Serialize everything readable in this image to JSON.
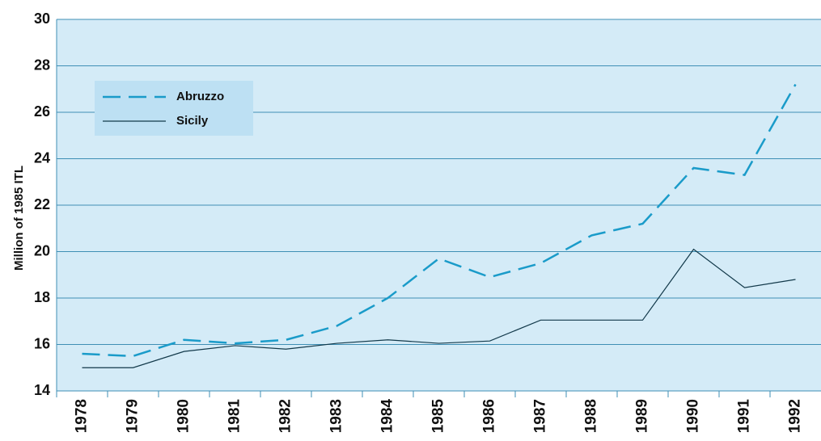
{
  "chart_data": {
    "type": "line",
    "y_label": "Million of 1985 ITL",
    "categories": [
      "1978",
      "1979",
      "1980",
      "1981",
      "1982",
      "1983",
      "1984",
      "1985",
      "1986",
      "1987",
      "1988",
      "1989",
      "1990",
      "1991",
      "1992"
    ],
    "series": [
      {
        "name": "Abruzzo",
        "color": "#1a9bc9",
        "dashed": true,
        "values": [
          15.6,
          15.5,
          16.2,
          16.05,
          16.2,
          16.8,
          18.0,
          19.7,
          18.9,
          19.5,
          20.7,
          21.2,
          23.6,
          23.3,
          27.2
        ]
      },
      {
        "name": "Sicily",
        "color": "#12394a",
        "dashed": false,
        "values": [
          15.0,
          15.0,
          15.7,
          15.95,
          15.8,
          16.05,
          16.2,
          16.05,
          16.15,
          17.05,
          17.05,
          17.05,
          20.1,
          18.45,
          18.8
        ]
      }
    ],
    "ylim": [
      14,
      30
    ],
    "yticks": [
      14,
      16,
      18,
      20,
      22,
      24,
      26,
      28,
      30
    ],
    "grid": true,
    "background": "#d4ebf7"
  }
}
